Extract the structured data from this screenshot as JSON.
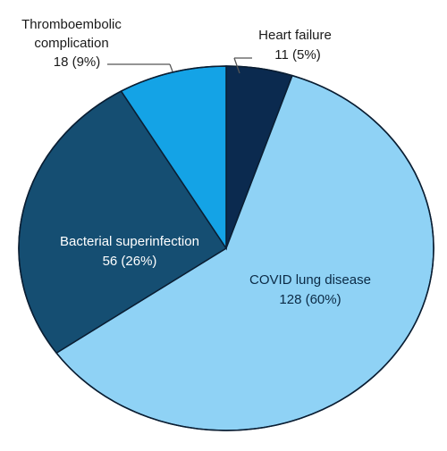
{
  "chart_data": {
    "type": "pie",
    "slices": [
      {
        "name": "Heart failure",
        "value": 11,
        "percent": "5%",
        "value_label": "11 (5%)",
        "color": "#0b2a4f"
      },
      {
        "name": "COVID lung disease",
        "value": 128,
        "percent": "60%",
        "value_label": "128 (60%)",
        "color": "#8fd2f5"
      },
      {
        "name": "Bacterial superinfection",
        "value": 56,
        "percent": "26%",
        "value_label": "56 (26%)",
        "color": "#154e72"
      },
      {
        "name": "Thromboembolic complication",
        "value": 18,
        "percent": "9%",
        "value_label": "18 (9%)",
        "color": "#14a3e6"
      }
    ],
    "labels": {
      "heart_failure_name": "Heart failure",
      "heart_failure_value": "11 (5%)",
      "thrombo_name_line1": "Thromboembolic",
      "thrombo_name_line2": "complication",
      "thrombo_value": "18 (9%)",
      "bacterial_name": "Bacterial superinfection",
      "bacterial_value": "56 (26%)",
      "covid_name": "COVID lung disease",
      "covid_value": "128 (60%)"
    }
  }
}
